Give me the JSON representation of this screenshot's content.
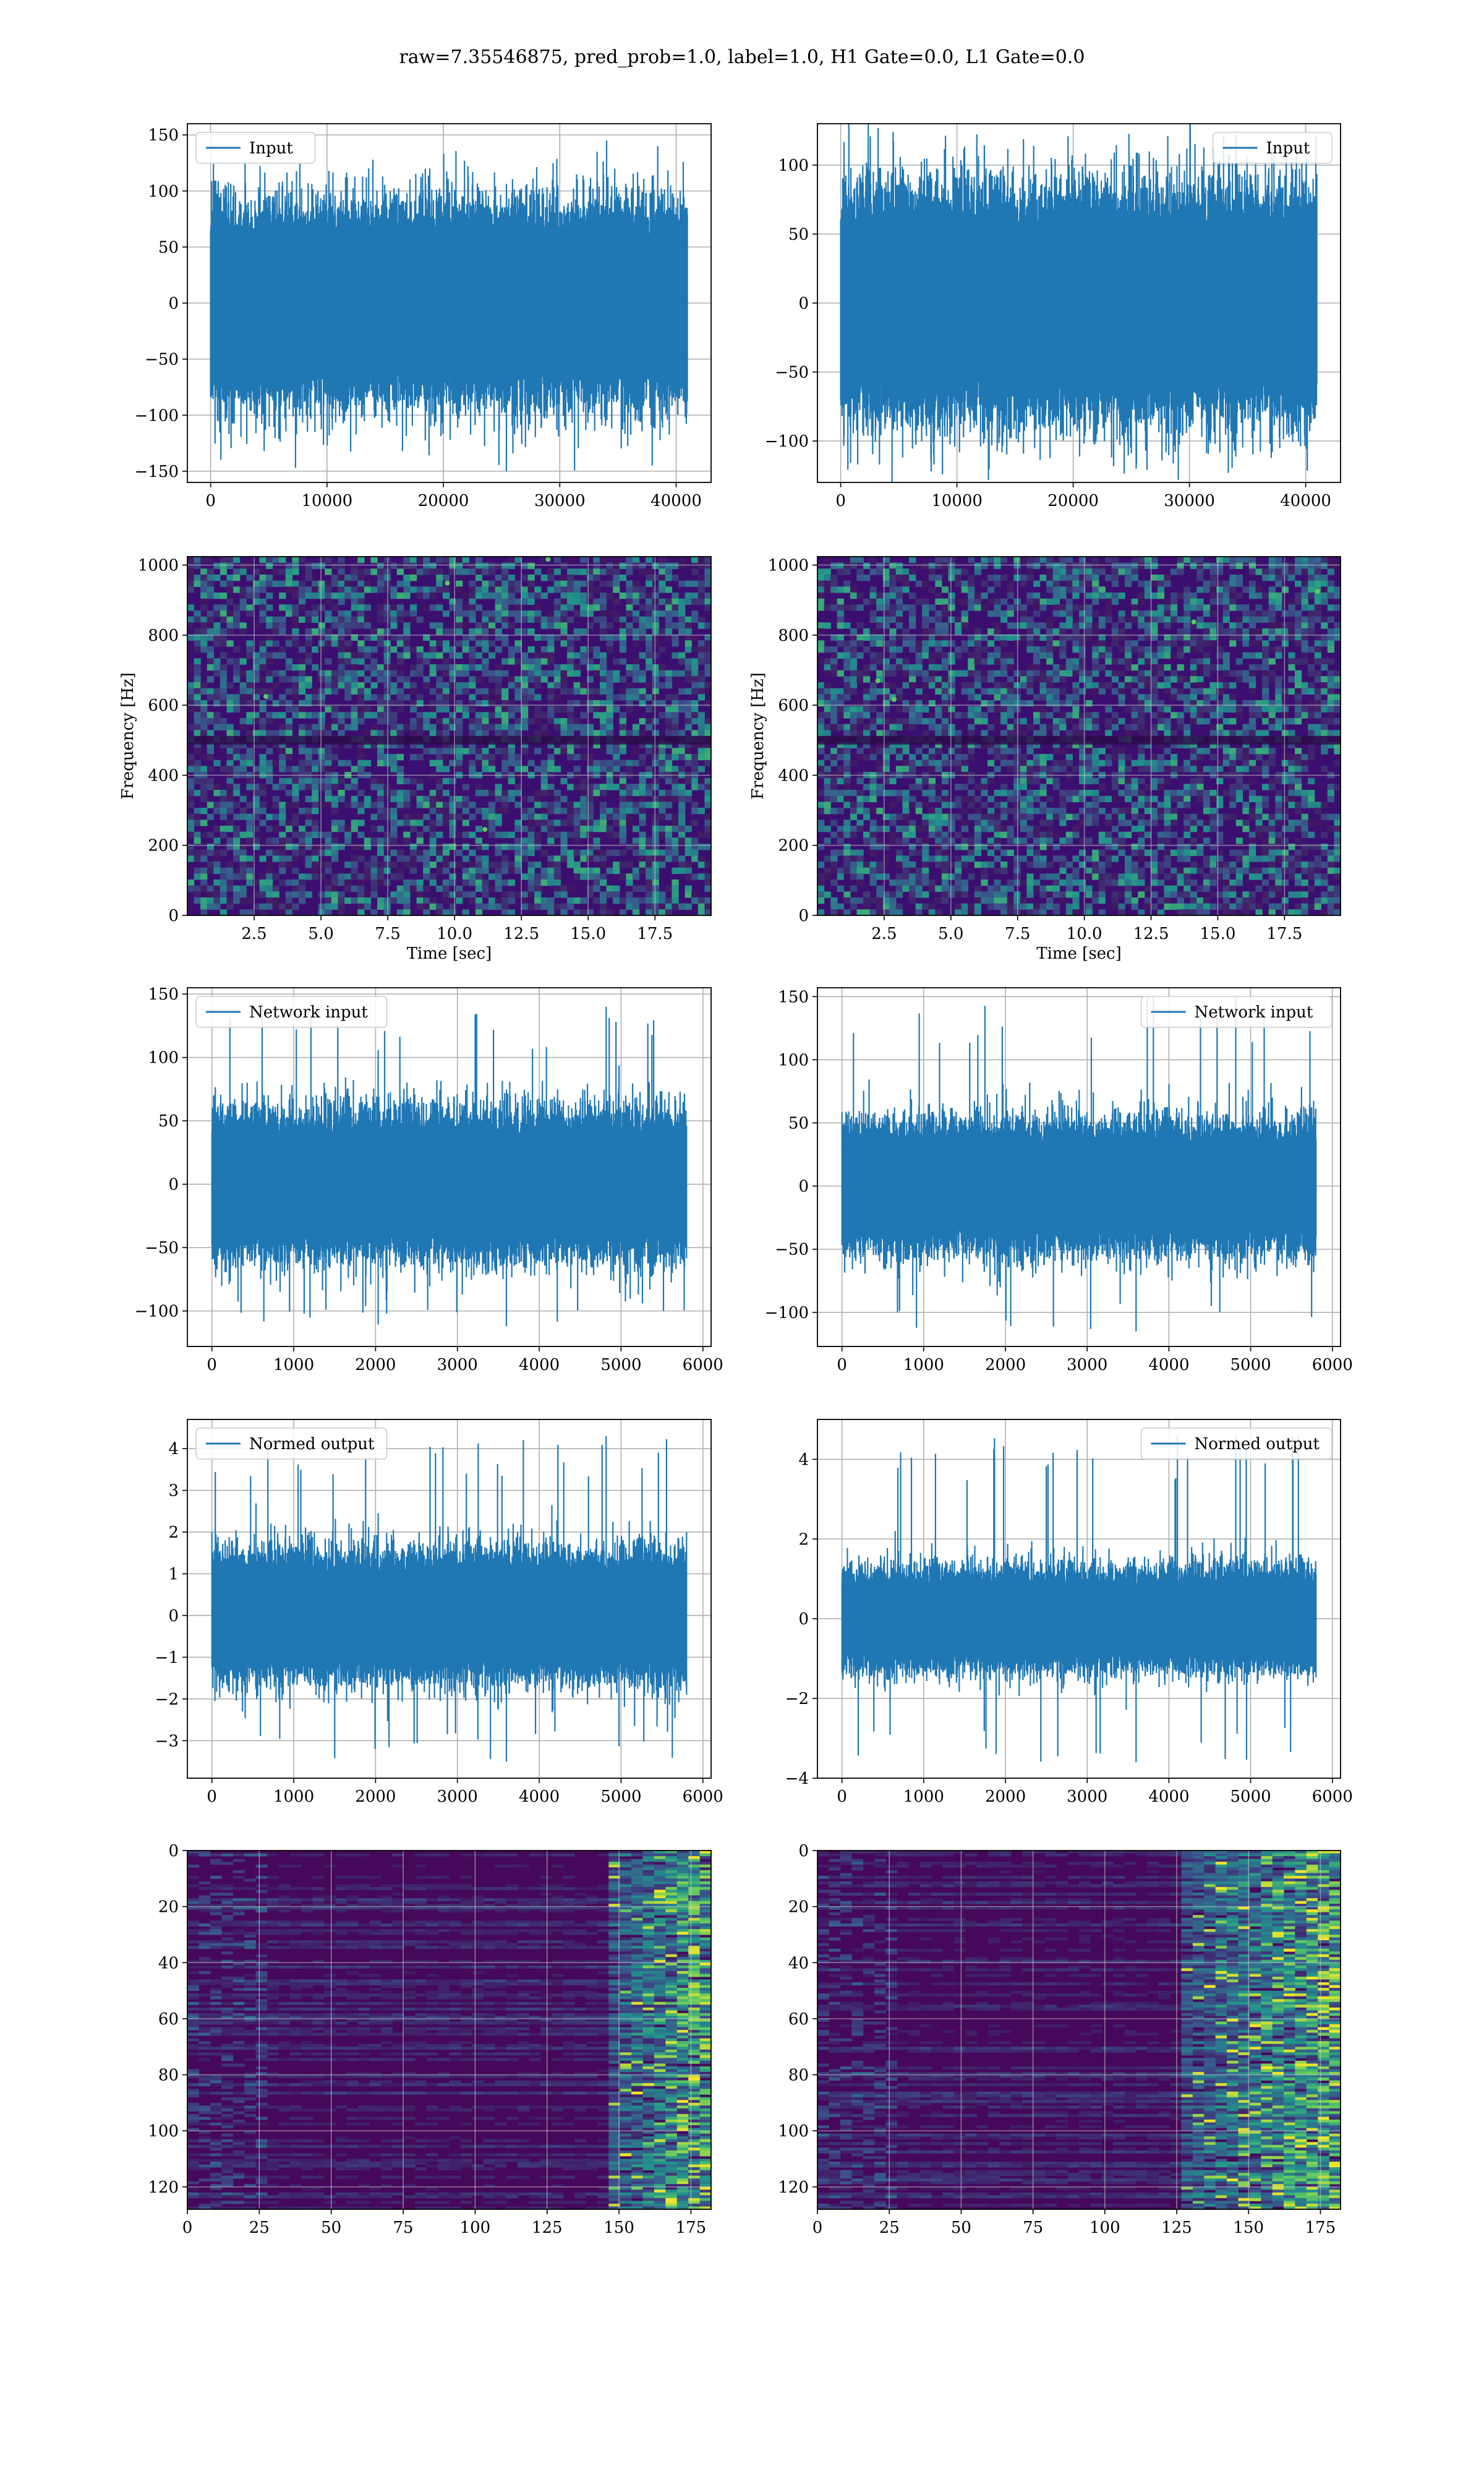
{
  "figure": {
    "suptitle": "raw=7.35546875, pred_prob=1.0, label=1.0, H1 Gate=0.0, L1 Gate=0.0"
  },
  "colors": {
    "line": "#1f77b4",
    "spec_bg": "#3b0f70",
    "spec_bg2": "#46085c",
    "spec_mid": "#2a788e",
    "spec_hi": "#5ec962",
    "spec_peak": "#fde725",
    "grid": "#b0b0b0"
  },
  "chart_data": [
    {
      "id": "input-h1",
      "type": "line",
      "row": 0,
      "col": 0,
      "series": [
        {
          "name": "Input",
          "envelope": {
            "typical": 70,
            "max": 145,
            "min": -150,
            "n": 40960
          }
        }
      ],
      "legend": "upper left",
      "xlim": [
        -2000,
        43000
      ],
      "ylim": [
        -160,
        160
      ],
      "xticks": [
        0,
        10000,
        20000,
        30000,
        40000
      ],
      "yticks": [
        -150,
        -100,
        -50,
        0,
        50,
        100,
        150
      ],
      "xlabel": "",
      "ylabel": "",
      "grid": true
    },
    {
      "id": "input-l1",
      "type": "line",
      "row": 0,
      "col": 1,
      "series": [
        {
          "name": "Input",
          "envelope": {
            "typical": 65,
            "max": 122,
            "min": -120,
            "n": 40960
          }
        }
      ],
      "legend": "upper right",
      "xlim": [
        -2000,
        43000
      ],
      "ylim": [
        -130,
        130
      ],
      "xticks": [
        0,
        10000,
        20000,
        30000,
        40000
      ],
      "yticks": [
        -100,
        -50,
        0,
        50,
        100
      ],
      "xlabel": "",
      "ylabel": "",
      "grid": true
    },
    {
      "id": "spec-h1",
      "type": "heatmap",
      "row": 1,
      "col": 0,
      "xlim": [
        0,
        19.6
      ],
      "ylim": [
        0,
        1024
      ],
      "xticks": [
        2.5,
        5.0,
        7.5,
        10.0,
        12.5,
        15.0,
        17.5
      ],
      "yticks": [
        0,
        200,
        400,
        600,
        800,
        1000
      ],
      "xlabel": "Time [sec]",
      "ylabel": "Frequency [Hz]",
      "grid": true,
      "dark_band_hz": 500
    },
    {
      "id": "spec-l1",
      "type": "heatmap",
      "row": 1,
      "col": 1,
      "xlim": [
        0,
        19.6
      ],
      "ylim": [
        0,
        1024
      ],
      "xticks": [
        2.5,
        5.0,
        7.5,
        10.0,
        12.5,
        15.0,
        17.5
      ],
      "yticks": [
        0,
        200,
        400,
        600,
        800,
        1000
      ],
      "xlabel": "Time [sec]",
      "ylabel": "Frequency [Hz]",
      "grid": true,
      "dark_band_hz": 500
    },
    {
      "id": "netin-h1",
      "type": "line",
      "row": 2,
      "col": 0,
      "series": [
        {
          "name": "Network input",
          "envelope": {
            "typical": 45,
            "max": 140,
            "min": -112,
            "n": 5800
          }
        }
      ],
      "legend": "upper left",
      "xlim": [
        -300,
        6100
      ],
      "ylim": [
        -128,
        155
      ],
      "xticks": [
        0,
        1000,
        2000,
        3000,
        4000,
        5000,
        6000
      ],
      "yticks": [
        -100,
        -50,
        0,
        50,
        100,
        150
      ],
      "xlabel": "",
      "ylabel": "",
      "grid": true
    },
    {
      "id": "netin-l1",
      "type": "line",
      "row": 2,
      "col": 1,
      "series": [
        {
          "name": "Network input",
          "envelope": {
            "typical": 40,
            "max": 150,
            "min": -115,
            "n": 5800
          }
        }
      ],
      "legend": "upper right",
      "xlim": [
        -300,
        6100
      ],
      "ylim": [
        -127,
        157
      ],
      "xticks": [
        0,
        1000,
        2000,
        3000,
        4000,
        5000,
        6000
      ],
      "yticks": [
        -100,
        -50,
        0,
        50,
        100,
        150
      ],
      "xlabel": "",
      "ylabel": "",
      "grid": true
    },
    {
      "id": "normout-h1",
      "type": "line",
      "row": 3,
      "col": 0,
      "series": [
        {
          "name": "Normed output",
          "envelope": {
            "typical": 1.2,
            "max": 4.3,
            "min": -3.5,
            "n": 5800
          }
        }
      ],
      "legend": "upper left",
      "xlim": [
        -300,
        6100
      ],
      "ylim": [
        -3.9,
        4.7
      ],
      "xticks": [
        0,
        1000,
        2000,
        3000,
        4000,
        5000,
        6000
      ],
      "yticks": [
        -3,
        -2,
        -1,
        0,
        1,
        2,
        3,
        4
      ],
      "xlabel": "",
      "ylabel": "",
      "grid": true
    },
    {
      "id": "normout-l1",
      "type": "line",
      "row": 3,
      "col": 1,
      "series": [
        {
          "name": "Normed output",
          "envelope": {
            "typical": 1.0,
            "max": 4.6,
            "min": -3.6,
            "n": 5800
          }
        }
      ],
      "legend": "upper right",
      "xlim": [
        -300,
        6100
      ],
      "ylim": [
        -4.0,
        5.0
      ],
      "xticks": [
        0,
        1000,
        2000,
        3000,
        4000,
        5000,
        6000
      ],
      "yticks": [
        -4,
        -2,
        0,
        2,
        4
      ],
      "xlabel": "",
      "ylabel": "",
      "grid": true
    },
    {
      "id": "features-h1",
      "type": "heatmap",
      "row": 4,
      "col": 0,
      "xlim": [
        0,
        182
      ],
      "ylim": [
        128,
        0
      ],
      "xticks": [
        0,
        25,
        50,
        75,
        100,
        125,
        150,
        175
      ],
      "yticks": [
        0,
        20,
        40,
        60,
        80,
        100,
        120
      ],
      "xlabel": "",
      "ylabel": "",
      "grid": true,
      "activity_starts_at": 145
    },
    {
      "id": "features-l1",
      "type": "heatmap",
      "row": 4,
      "col": 1,
      "xlim": [
        0,
        182
      ],
      "ylim": [
        128,
        0
      ],
      "xticks": [
        0,
        25,
        50,
        75,
        100,
        125,
        150,
        175
      ],
      "yticks": [
        0,
        20,
        40,
        60,
        80,
        100,
        120
      ],
      "xlabel": "",
      "ylabel": "",
      "grid": true,
      "activity_starts_at": 125
    }
  ]
}
